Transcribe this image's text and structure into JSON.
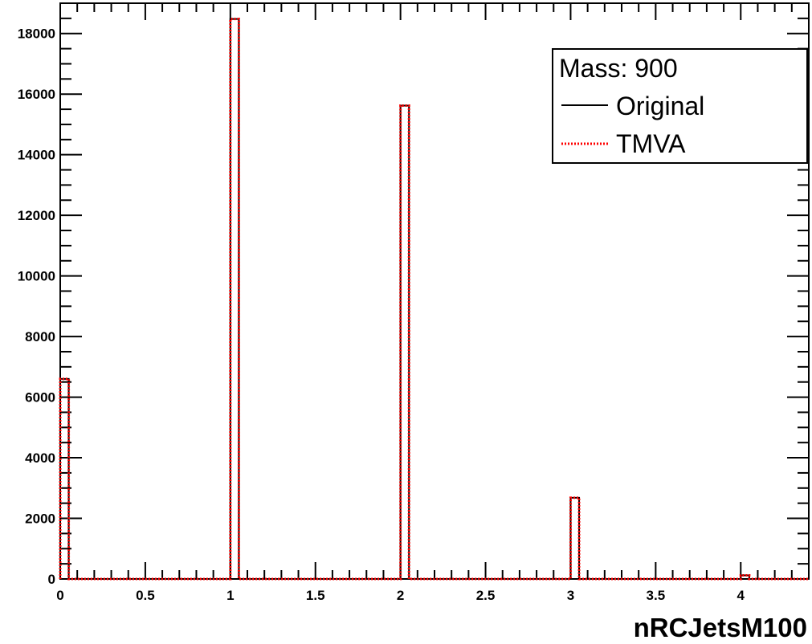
{
  "chart_data": {
    "type": "histogram",
    "xlabel": "nRCJetsM100",
    "ylabel": "",
    "xlim": [
      0,
      4.4
    ],
    "ylim": [
      0,
      19000
    ],
    "x_ticks": [
      "0",
      "0.5",
      "1",
      "1.5",
      "2",
      "2.5",
      "3",
      "3.5",
      "4"
    ],
    "y_ticks": [
      "0",
      "2000",
      "4000",
      "6000",
      "8000",
      "10000",
      "12000",
      "14000",
      "16000",
      "18000"
    ],
    "bin_width": 0.05,
    "legend": {
      "title": "Mass: 900",
      "position": "top-right",
      "entries": [
        {
          "label": "Original",
          "color": "#000000",
          "style": "solid"
        },
        {
          "label": "TMVA",
          "color": "#ff0000",
          "style": "dotted"
        }
      ]
    },
    "series": [
      {
        "name": "Original",
        "color": "#000000",
        "bins": [
          {
            "x": 0,
            "value": 6600
          },
          {
            "x": 1,
            "value": 18480
          },
          {
            "x": 2,
            "value": 15620
          },
          {
            "x": 3,
            "value": 2680
          },
          {
            "x": 4,
            "value": 120
          }
        ]
      },
      {
        "name": "TMVA",
        "color": "#ff0000",
        "bins": [
          {
            "x": 0,
            "value": 6600
          },
          {
            "x": 1,
            "value": 18480
          },
          {
            "x": 2,
            "value": 15620
          },
          {
            "x": 3,
            "value": 2680
          },
          {
            "x": 4,
            "value": 120
          }
        ]
      }
    ],
    "grid": false
  }
}
